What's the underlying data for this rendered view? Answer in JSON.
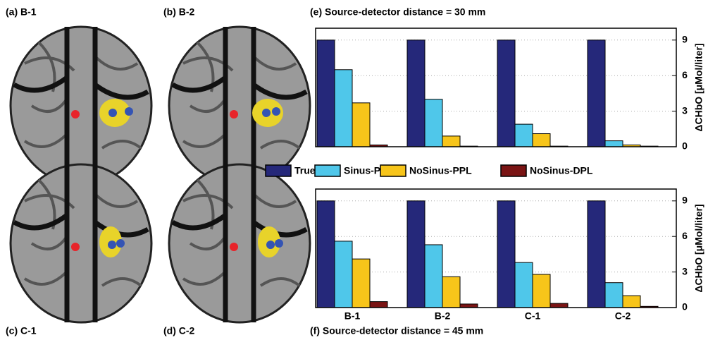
{
  "image_panels": [
    "(a) B-1",
    "(b) B-2",
    "(c) C-1",
    "(d) C-2"
  ],
  "chart_data": [
    {
      "type": "bar",
      "title": "(e) Source-detector distance = 30 mm",
      "ylabel": "ΔCHbO [μMol/liter]",
      "ylim": [
        0,
        10
      ],
      "yticks": [
        0,
        3,
        6,
        9
      ],
      "grid": true,
      "series": [
        {
          "name": "True",
          "color": "#25287a",
          "values": [
            9,
            9,
            9,
            9
          ]
        },
        {
          "name": "Sinus-PPL",
          "color": "#4fc7ea",
          "values": [
            6.5,
            4.0,
            1.9,
            0.5
          ]
        },
        {
          "name": "NoSinus-PPL",
          "color": "#f7c51a",
          "values": [
            3.7,
            0.9,
            1.1,
            0.15
          ]
        },
        {
          "name": "NoSinus-DPL",
          "color": "#7a1414",
          "values": [
            0.15,
            0.05,
            0.05,
            0.05
          ]
        }
      ]
    },
    {
      "type": "bar",
      "title": "(f) Source-detector distance = 45 mm",
      "ylabel": "ΔCHbO [μMol/liter]",
      "categories": [
        "B-1",
        "B-2",
        "C-1",
        "C-2"
      ],
      "ylim": [
        0,
        10
      ],
      "yticks": [
        0,
        3,
        6,
        9
      ],
      "grid": true,
      "series": [
        {
          "color": "#25287a",
          "values": [
            9,
            9,
            9,
            9
          ]
        },
        {
          "color": "#4fc7ea",
          "values": [
            5.6,
            5.3,
            3.8,
            2.1
          ]
        },
        {
          "color": "#f7c51a",
          "values": [
            4.1,
            2.6,
            2.8,
            1.0
          ]
        },
        {
          "color": "#7a1414",
          "values": [
            0.5,
            0.3,
            0.35,
            0.1
          ]
        }
      ]
    }
  ]
}
